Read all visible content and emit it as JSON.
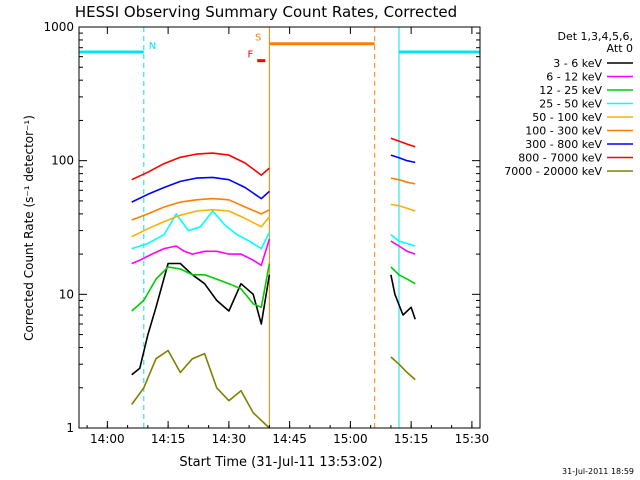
{
  "chart_data": {
    "type": "line",
    "title": "HESSI Observing Summary Count Rates, Corrected",
    "xlabel": "Start Time (31-Jul-11 13:53:02)",
    "ylabel": "Corrected Count Rate (s⁻¹ detector⁻¹)",
    "yscale": "log",
    "ylim": [
      1,
      1000
    ],
    "xlim": [
      "13:53",
      "15:32"
    ],
    "xtick_labels": [
      "14:00",
      "14:15",
      "14:30",
      "14:45",
      "15:00",
      "15:15",
      "15:30"
    ],
    "ytick_labels": [
      "1",
      "10",
      "100",
      "1000"
    ],
    "legend_title": [
      "Det 1,3,4,5,6,",
      "Att 0"
    ],
    "legend_position": "right",
    "timestamp": "31-Jul-2011 18:59",
    "series": [
      {
        "name": "3 - 6 keV",
        "color": "#000000",
        "segments": [
          [
            [
              "14:06",
              2.5
            ],
            [
              "14:08",
              2.8
            ],
            [
              "14:10",
              5
            ],
            [
              "14:12",
              8
            ],
            [
              "14:15",
              17
            ],
            [
              "14:18",
              17
            ],
            [
              "14:21",
              14
            ],
            [
              "14:24",
              12
            ],
            [
              "14:27",
              9
            ],
            [
              "14:30",
              7.5
            ],
            [
              "14:33",
              12
            ],
            [
              "14:36",
              10
            ],
            [
              "14:38",
              6
            ],
            [
              "14:40",
              14
            ]
          ],
          [
            [
              "15:10",
              14
            ],
            [
              "15:11",
              10
            ],
            [
              "15:13",
              7
            ],
            [
              "15:15",
              8
            ],
            [
              "15:16",
              6.5
            ]
          ]
        ]
      },
      {
        "name": "6 - 12 keV",
        "color": "#ff00ff",
        "segments": [
          [
            [
              "14:06",
              17
            ],
            [
              "14:08",
              18
            ],
            [
              "14:11",
              20
            ],
            [
              "14:14",
              22
            ],
            [
              "14:17",
              23
            ],
            [
              "14:19",
              21
            ],
            [
              "14:21",
              20
            ],
            [
              "14:24",
              21
            ],
            [
              "14:27",
              21
            ],
            [
              "14:30",
              20
            ],
            [
              "14:33",
              20
            ],
            [
              "14:36",
              18
            ],
            [
              "14:38",
              16.5
            ],
            [
              "14:40",
              26
            ]
          ],
          [
            [
              "15:10",
              25
            ],
            [
              "15:12",
              23
            ],
            [
              "15:14",
              21
            ],
            [
              "15:16",
              20
            ]
          ]
        ]
      },
      {
        "name": "12 - 25 keV",
        "color": "#00cc00",
        "segments": [
          [
            [
              "14:06",
              7.5
            ],
            [
              "14:09",
              9
            ],
            [
              "14:12",
              13
            ],
            [
              "14:15",
              16
            ],
            [
              "14:18",
              15.5
            ],
            [
              "14:21",
              14
            ],
            [
              "14:24",
              14
            ],
            [
              "14:27",
              13
            ],
            [
              "14:30",
              12
            ],
            [
              "14:33",
              11
            ],
            [
              "14:36",
              8.5
            ],
            [
              "14:38",
              8
            ],
            [
              "14:40",
              17
            ]
          ],
          [
            [
              "15:10",
              16
            ],
            [
              "15:12",
              14
            ],
            [
              "15:14",
              13
            ],
            [
              "15:16",
              12
            ]
          ]
        ]
      },
      {
        "name": "25 - 50 keV",
        "color": "#00ffff",
        "segments": [
          [
            [
              "14:06",
              22
            ],
            [
              "14:10",
              24
            ],
            [
              "14:14",
              28
            ],
            [
              "14:17",
              40
            ],
            [
              "14:20",
              30
            ],
            [
              "14:23",
              32
            ],
            [
              "14:26",
              42
            ],
            [
              "14:29",
              33
            ],
            [
              "14:32",
              28
            ],
            [
              "14:35",
              25
            ],
            [
              "14:38",
              22
            ],
            [
              "14:40",
              29
            ]
          ],
          [
            [
              "15:10",
              28
            ],
            [
              "15:12",
              25
            ],
            [
              "15:14",
              24
            ],
            [
              "15:16",
              23
            ]
          ]
        ]
      },
      {
        "name": "50 - 100 keV",
        "color": "#ffb000",
        "segments": [
          [
            [
              "14:06",
              27
            ],
            [
              "14:10",
              31
            ],
            [
              "14:14",
              35
            ],
            [
              "14:18",
              39
            ],
            [
              "14:22",
              42
            ],
            [
              "14:26",
              43
            ],
            [
              "14:30",
              42
            ],
            [
              "14:34",
              37
            ],
            [
              "14:38",
              32
            ],
            [
              "14:40",
              38
            ]
          ],
          [
            [
              "15:10",
              47
            ],
            [
              "15:12",
              46
            ],
            [
              "15:14",
              44
            ],
            [
              "15:16",
              42
            ]
          ]
        ]
      },
      {
        "name": "100 - 300 keV",
        "color": "#ff8000",
        "segments": [
          [
            [
              "14:06",
              36
            ],
            [
              "14:10",
              40
            ],
            [
              "14:14",
              45
            ],
            [
              "14:18",
              49
            ],
            [
              "14:22",
              51
            ],
            [
              "14:26",
              52
            ],
            [
              "14:30",
              51
            ],
            [
              "14:34",
              45
            ],
            [
              "14:38",
              40
            ],
            [
              "14:40",
              43
            ]
          ],
          [
            [
              "15:10",
              74
            ],
            [
              "15:12",
              72
            ],
            [
              "15:14",
              69
            ],
            [
              "15:16",
              67
            ]
          ]
        ]
      },
      {
        "name": "300 - 800 keV",
        "color": "#0000ff",
        "segments": [
          [
            [
              "14:06",
              49
            ],
            [
              "14:10",
              56
            ],
            [
              "14:14",
              63
            ],
            [
              "14:18",
              70
            ],
            [
              "14:22",
              74
            ],
            [
              "14:26",
              75
            ],
            [
              "14:30",
              72
            ],
            [
              "14:34",
              63
            ],
            [
              "14:38",
              52
            ],
            [
              "14:40",
              59
            ]
          ],
          [
            [
              "15:10",
              110
            ],
            [
              "15:12",
              105
            ],
            [
              "15:14",
              100
            ],
            [
              "15:16",
              97
            ]
          ]
        ]
      },
      {
        "name": "800 - 7000 keV",
        "color": "#ff0000",
        "segments": [
          [
            [
              "14:06",
              72
            ],
            [
              "14:10",
              82
            ],
            [
              "14:14",
              95
            ],
            [
              "14:18",
              106
            ],
            [
              "14:22",
              112
            ],
            [
              "14:26",
              114
            ],
            [
              "14:30",
              110
            ],
            [
              "14:34",
              96
            ],
            [
              "14:38",
              78
            ],
            [
              "14:40",
              88
            ]
          ],
          [
            [
              "15:10",
              147
            ],
            [
              "15:12",
              140
            ],
            [
              "15:14",
              133
            ],
            [
              "15:16",
              127
            ]
          ]
        ]
      },
      {
        "name": "7000 - 20000 keV",
        "color": "#808000",
        "segments": [
          [
            [
              "14:06",
              1.5
            ],
            [
              "14:09",
              2
            ],
            [
              "14:12",
              3.3
            ],
            [
              "14:15",
              3.8
            ],
            [
              "14:18",
              2.6
            ],
            [
              "14:21",
              3.3
            ],
            [
              "14:24",
              3.6
            ],
            [
              "14:27",
              2
            ],
            [
              "14:30",
              1.6
            ],
            [
              "14:33",
              1.9
            ],
            [
              "14:36",
              1.3
            ],
            [
              "14:40",
              1
            ]
          ],
          [
            [
              "15:10",
              3.4
            ],
            [
              "15:12",
              3
            ],
            [
              "15:14",
              2.6
            ],
            [
              "15:16",
              2.3
            ]
          ]
        ]
      }
    ],
    "markers": [
      {
        "label": "N",
        "color": "#00e5ee",
        "start": "13:53",
        "end": "14:09",
        "level": 650
      },
      {
        "label": "",
        "color": "#00e5ee",
        "start": "15:12",
        "end": "15:32",
        "level": 650
      },
      {
        "label": "S",
        "color": "#ff8000",
        "start": "14:40",
        "end": "15:06",
        "level": 750
      },
      {
        "label": "F",
        "color": "#ff0000",
        "start": "14:37",
        "end": "14:39",
        "level": 560
      }
    ],
    "vertical_lines": [
      {
        "t": "13:53",
        "color": "#00e5ee",
        "dash": false
      },
      {
        "t": "14:09",
        "color": "#00e5ee",
        "dash": true
      },
      {
        "t": "14:40",
        "color": "#ff8000",
        "dash": false
      },
      {
        "t": "15:06",
        "color": "#ff8000",
        "dash": true
      },
      {
        "t": "15:12",
        "color": "#00e5ee",
        "dash": false
      },
      {
        "t": "15:32",
        "color": "#00e5ee",
        "dash": true
      }
    ]
  }
}
